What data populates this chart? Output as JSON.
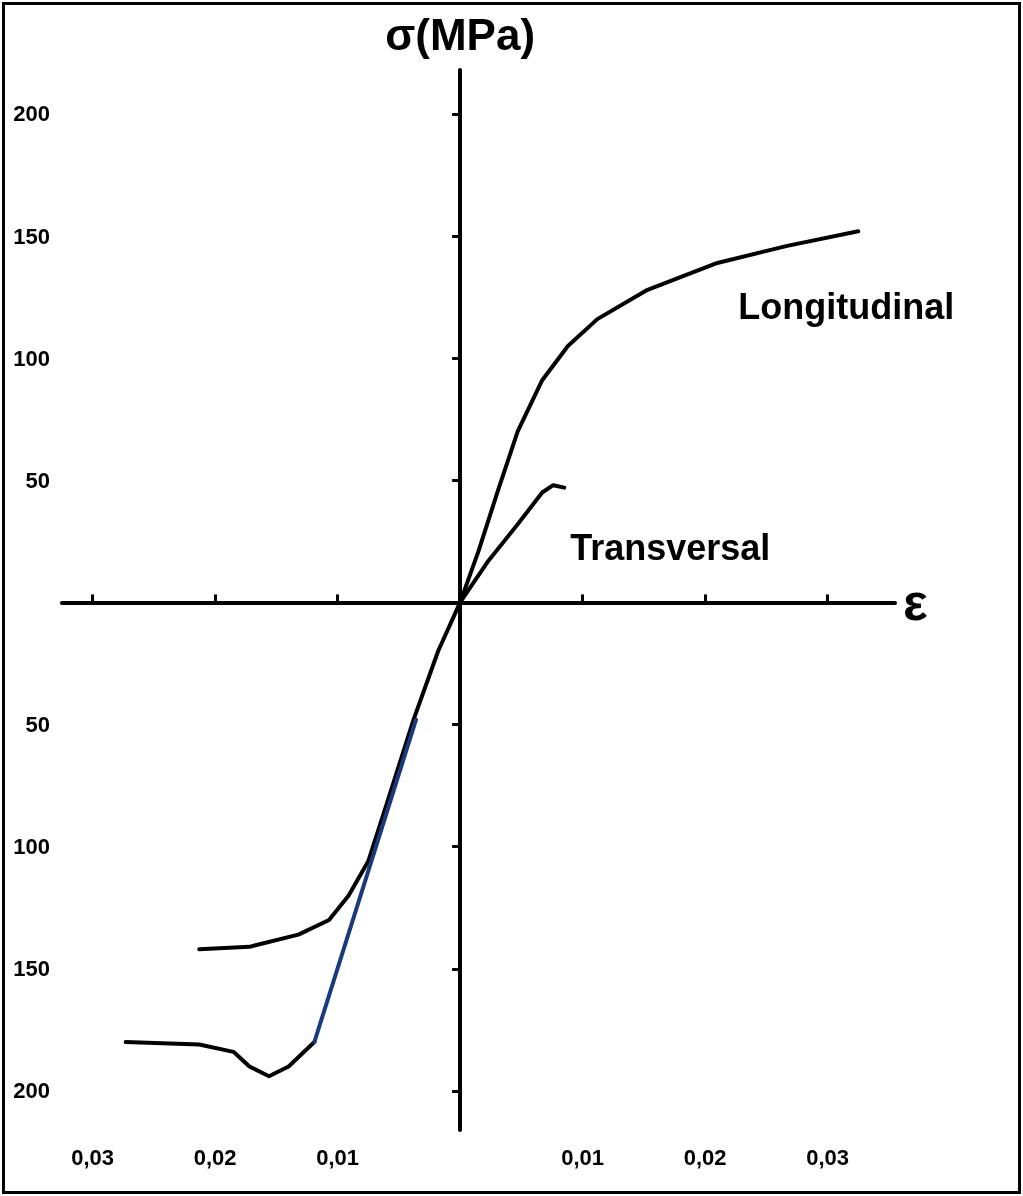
{
  "chart_data": {
    "type": "line",
    "xlabel": "ε",
    "ylabel": "σ(MPa)",
    "xlim": [
      -0.0325,
      0.0355
    ],
    "ylim": [
      -216,
      218
    ],
    "xticks": [
      {
        "value": -0.03,
        "label": "0,03"
      },
      {
        "value": -0.02,
        "label": "0,02"
      },
      {
        "value": -0.01,
        "label": "0,01"
      },
      {
        "value": 0.01,
        "label": "0,01"
      },
      {
        "value": 0.02,
        "label": "0,02"
      },
      {
        "value": 0.03,
        "label": "0,03"
      }
    ],
    "yticks": [
      {
        "value": -200,
        "label": "200"
      },
      {
        "value": -150,
        "label": "150"
      },
      {
        "value": -100,
        "label": "100"
      },
      {
        "value": -50,
        "label": "50"
      },
      50,
      100,
      150,
      200
    ],
    "grid": false,
    "legend": false,
    "marker": "none",
    "line_style": "solid",
    "series": [
      {
        "name": "Longitudinal",
        "color": "#000000",
        "x": [
          -0.0213,
          -0.0172,
          -0.0132,
          -0.0107,
          -0.0091,
          -0.0075,
          -0.0059,
          -0.0038,
          -0.0018,
          0,
          0.0015,
          0.0031,
          0.0047,
          0.0067,
          0.0088,
          0.0112,
          0.0153,
          0.021,
          0.0267,
          0.0325
        ],
        "values": [
          -142,
          -141,
          -136,
          -130,
          -120,
          -106,
          -81,
          -48,
          -20,
          0,
          21,
          46,
          70,
          91,
          105,
          116,
          128,
          139,
          146,
          152
        ]
      },
      {
        "name": "Transversal",
        "color": "#000000",
        "x": [
          0,
          0.0023,
          0.0047,
          0.0067,
          0.0076,
          0.0085
        ],
        "values": [
          0,
          17,
          32,
          45,
          48,
          47
        ]
      },
      {
        "color": "#000000",
        "x": [
          -0.0273,
          -0.0213,
          -0.0185,
          -0.0172,
          -0.0156,
          -0.014,
          -0.0119
        ],
        "values": [
          -180,
          -181,
          -184,
          -190,
          -194,
          -190,
          -180
        ]
      },
      {
        "color": "#1a3a80",
        "x": [
          -0.0119,
          -0.0036
        ],
        "values": [
          -180,
          -48
        ]
      }
    ]
  }
}
